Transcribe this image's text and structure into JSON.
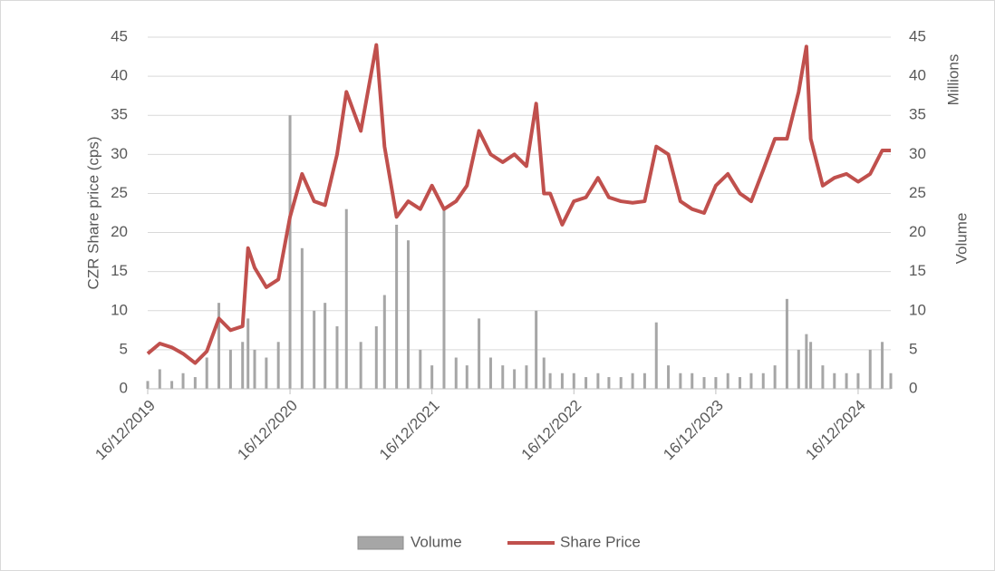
{
  "chart_data": {
    "type": "bar-line",
    "y_label": "CZR Share price (cps)",
    "y2_label": "Volume",
    "y2_units": "Millions",
    "x": [
      "2019-12-16",
      "2020-01-16",
      "2020-02-16",
      "2020-03-16",
      "2020-04-16",
      "2020-05-16",
      "2020-06-16",
      "2020-07-16",
      "2020-08-16",
      "2020-08-30",
      "2020-09-16",
      "2020-10-16",
      "2020-11-16",
      "2020-12-16",
      "2021-01-16",
      "2021-02-16",
      "2021-03-16",
      "2021-04-16",
      "2021-05-10",
      "2021-06-16",
      "2021-07-26",
      "2021-08-16",
      "2021-09-16",
      "2021-10-16",
      "2021-11-16",
      "2021-12-16",
      "2022-01-16",
      "2022-02-16",
      "2022-03-16",
      "2022-04-16",
      "2022-05-16",
      "2022-06-16",
      "2022-07-16",
      "2022-08-16",
      "2022-09-10",
      "2022-09-30",
      "2022-10-16",
      "2022-11-16",
      "2022-12-16",
      "2023-01-16",
      "2023-02-16",
      "2023-03-16",
      "2023-04-16",
      "2023-05-16",
      "2023-06-16",
      "2023-07-16",
      "2023-08-16",
      "2023-09-16",
      "2023-10-16",
      "2023-11-16",
      "2023-12-16",
      "2024-01-16",
      "2024-02-16",
      "2024-03-16",
      "2024-04-16",
      "2024-05-16",
      "2024-06-16",
      "2024-07-16",
      "2024-08-05",
      "2024-08-16",
      "2024-09-16",
      "2024-10-16",
      "2024-11-16",
      "2024-12-16",
      "2025-01-16",
      "2025-02-16",
      "2025-03-10"
    ],
    "series": [
      {
        "name": "Volume",
        "type": "bar",
        "axis": "y2",
        "color": "#a6a6a6",
        "values": [
          1,
          2.5,
          1,
          2,
          1.5,
          4,
          11,
          5,
          6,
          9,
          5,
          4,
          6,
          35,
          18,
          10,
          11,
          8,
          23,
          6,
          8,
          12,
          21,
          19,
          5,
          3,
          23,
          4,
          3,
          9,
          4,
          3,
          2.5,
          3,
          10,
          4,
          2,
          2,
          2,
          1.5,
          2,
          1.5,
          1.5,
          2,
          2,
          8.5,
          3,
          2,
          2,
          1.5,
          1.5,
          2,
          1.5,
          2,
          2,
          3,
          11.5,
          5,
          7,
          6,
          3,
          2,
          2,
          2,
          5,
          6,
          2
        ]
      },
      {
        "name": "Share Price",
        "type": "line",
        "color": "#c0504d",
        "values": [
          4.5,
          5.8,
          5.3,
          4.5,
          3.3,
          4.8,
          9,
          7.5,
          8,
          18,
          15.5,
          13,
          14,
          22,
          27.5,
          24,
          23.5,
          30,
          38,
          33,
          44,
          31,
          22,
          24,
          23,
          26,
          23,
          24,
          26,
          33,
          30,
          29,
          30,
          28.5,
          36.5,
          25,
          25,
          21,
          24,
          24.5,
          27,
          24.5,
          24,
          23.8,
          24,
          31,
          30,
          24,
          23,
          22.5,
          26,
          27.5,
          25,
          24,
          28,
          32,
          32,
          38,
          43.8,
          32,
          26,
          27,
          27.5,
          26.5,
          27.5,
          30.5,
          30.5
        ]
      }
    ],
    "xlim": [
      "2019-12-16",
      "2025-03-10"
    ],
    "xticks": [
      {
        "value": "2019-12-16",
        "label": "16/12/2019"
      },
      {
        "value": "2020-12-16",
        "label": "16/12/2020"
      },
      {
        "value": "2021-12-16",
        "label": "16/12/2021"
      },
      {
        "value": "2022-12-16",
        "label": "16/12/2022"
      },
      {
        "value": "2023-12-16",
        "label": "16/12/2023"
      },
      {
        "value": "2024-12-16",
        "label": "16/12/2024"
      }
    ],
    "ylim": [
      0,
      45
    ],
    "yticks": [
      0,
      5,
      10,
      15,
      20,
      25,
      30,
      35,
      40,
      45
    ],
    "y2lim": [
      0,
      45
    ],
    "y2ticks": [
      0,
      5,
      10,
      15,
      20,
      25,
      30,
      35,
      40,
      45
    ],
    "grid": true,
    "legend": "bottom"
  }
}
